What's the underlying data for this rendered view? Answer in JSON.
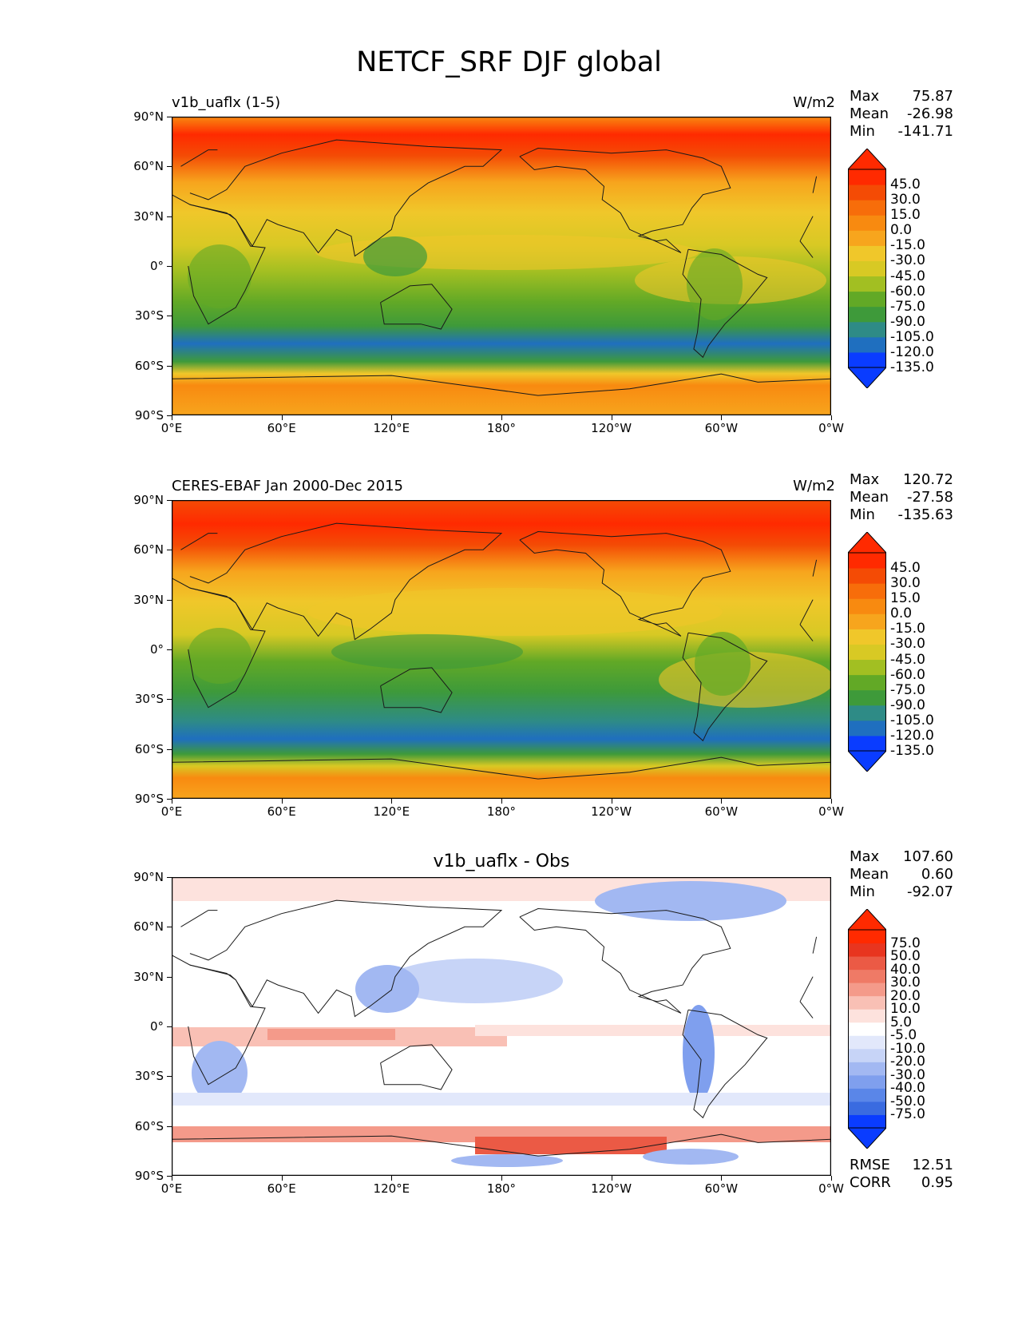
{
  "figure": {
    "title": "NETCF_SRF DJF global"
  },
  "axes": {
    "x_ticks": [
      "0°E",
      "60°E",
      "120°E",
      "180°",
      "120°W",
      "60°W",
      "0°W"
    ],
    "y_ticks": [
      "90°N",
      "60°N",
      "30°N",
      "0°",
      "30°S",
      "60°S",
      "90°S"
    ]
  },
  "panels": [
    {
      "title_left": "v1b_uaflx (1-5)",
      "units": "W/m2",
      "stats": {
        "max_label": "Max",
        "max": "75.87",
        "mean_label": "Mean",
        "mean": "-26.98",
        "min_label": "Min",
        "min": "-141.71"
      },
      "colorbar_labels": [
        "45.0",
        "30.0",
        "15.0",
        "0.0",
        "-15.0",
        "-30.0",
        "-45.0",
        "-60.0",
        "-75.0",
        "-90.0",
        "-105.0",
        "-120.0",
        "-135.0"
      ]
    },
    {
      "title_left": "CERES-EBAF Jan 2000-Dec 2015",
      "units": "W/m2",
      "stats": {
        "max_label": "Max",
        "max": "120.72",
        "mean_label": "Mean",
        "mean": "-27.58",
        "min_label": "Min",
        "min": "-135.63"
      },
      "colorbar_labels": [
        "45.0",
        "30.0",
        "15.0",
        "0.0",
        "-15.0",
        "-30.0",
        "-45.0",
        "-60.0",
        "-75.0",
        "-90.0",
        "-105.0",
        "-120.0",
        "-135.0"
      ]
    },
    {
      "title_center": "v1b_uaflx - Obs",
      "stats": {
        "max_label": "Max",
        "max": "107.60",
        "mean_label": "Mean",
        "mean": "0.60",
        "min_label": "Min",
        "min": "-92.07"
      },
      "colorbar_labels": [
        "75.0",
        "50.0",
        "40.0",
        "30.0",
        "20.0",
        "10.0",
        "5.0",
        "-5.0",
        "-10.0",
        "-20.0",
        "-30.0",
        "-40.0",
        "-50.0",
        "-75.0"
      ],
      "errors": {
        "rmse_label": "RMSE",
        "rmse": "12.51",
        "corr_label": "CORR",
        "corr": "0.95"
      }
    }
  ],
  "colors": {
    "field_scale": [
      "#0a3cff",
      "#1f6fbf",
      "#2e8b86",
      "#3e9a3a",
      "#62a926",
      "#a2bf22",
      "#d8c924",
      "#f0c72a",
      "#f7a51d",
      "#f88a10",
      "#f76d0a",
      "#f44b05",
      "#ff2a00"
    ],
    "diff_scale": [
      "#0a3cff",
      "#3a6be0",
      "#5a86e8",
      "#7f9fee",
      "#a2b8f2",
      "#c7d4f7",
      "#e2e8fb",
      "#ffffff",
      "#fde2dd",
      "#f9c0b5",
      "#f49a8a",
      "#ef7a66",
      "#eb5a45",
      "#e8351f",
      "#ff2a00"
    ]
  }
}
